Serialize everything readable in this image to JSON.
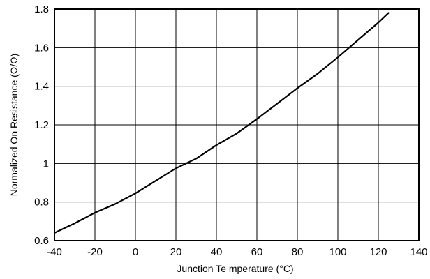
{
  "chart_data": {
    "type": "line",
    "xlabel": "Junction Te mperature (°C)",
    "ylabel": "Normalized On Resistance (Ω/Ω)",
    "xlim": [
      -40,
      140
    ],
    "ylim": [
      0.6,
      1.8
    ],
    "x_ticks": [
      -40,
      -20,
      0,
      20,
      40,
      60,
      80,
      100,
      120,
      140
    ],
    "y_ticks": [
      0.6,
      0.8,
      1,
      1.2,
      1.4,
      1.6,
      1.8
    ],
    "x_tick_labels": [
      "-40",
      "-20",
      "0",
      "20",
      "40",
      "60",
      "80",
      "100",
      "120",
      "140"
    ],
    "y_tick_labels": [
      "0.6",
      "0.8",
      "1",
      "1.2",
      "1.4",
      "1.6",
      "1.8"
    ],
    "grid": true,
    "series": [
      {
        "color": "#000000",
        "x": [
          -40,
          -30,
          -20,
          -10,
          0,
          10,
          20,
          30,
          40,
          50,
          60,
          70,
          80,
          90,
          100,
          110,
          120,
          125
        ],
        "y": [
          0.64,
          0.69,
          0.745,
          0.79,
          0.845,
          0.91,
          0.975,
          1.025,
          1.095,
          1.155,
          1.23,
          1.31,
          1.39,
          1.465,
          1.55,
          1.64,
          1.73,
          1.78
        ]
      }
    ]
  }
}
